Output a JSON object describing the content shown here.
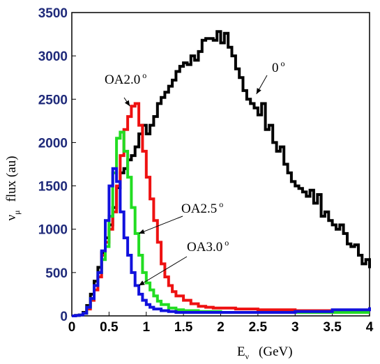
{
  "chart_data": {
    "type": "line",
    "xlabel": "Eν (GeV)",
    "ylabel": "νμ flux (au)",
    "xlim": [
      0,
      4
    ],
    "ylim": [
      0,
      3500
    ],
    "xticks": [
      "0",
      "0.5",
      "1",
      "1.5",
      "2",
      "2.5",
      "3",
      "3.5",
      "4"
    ],
    "yticks": [
      "0",
      "500",
      "1000",
      "1500",
      "2000",
      "2500",
      "3000",
      "3500"
    ],
    "grid": false,
    "step": true,
    "series": [
      {
        "name": "0°",
        "color": "#000000",
        "x": [
          0.0,
          0.05,
          0.1,
          0.15,
          0.2,
          0.25,
          0.3,
          0.35,
          0.4,
          0.45,
          0.5,
          0.55,
          0.6,
          0.65,
          0.7,
          0.75,
          0.8,
          0.85,
          0.9,
          0.95,
          1.0,
          1.05,
          1.1,
          1.15,
          1.2,
          1.25,
          1.3,
          1.35,
          1.4,
          1.45,
          1.5,
          1.55,
          1.6,
          1.65,
          1.7,
          1.75,
          1.8,
          1.85,
          1.9,
          1.95,
          2.0,
          2.05,
          2.1,
          2.15,
          2.2,
          2.25,
          2.3,
          2.35,
          2.4,
          2.45,
          2.5,
          2.55,
          2.6,
          2.65,
          2.7,
          2.75,
          2.8,
          2.85,
          2.9,
          2.95,
          3.0,
          3.05,
          3.1,
          3.15,
          3.2,
          3.25,
          3.3,
          3.35,
          3.4,
          3.45,
          3.5,
          3.55,
          3.6,
          3.65,
          3.7,
          3.75,
          3.8,
          3.85,
          3.9,
          3.95,
          4.0
        ],
        "y": [
          0,
          5,
          10,
          40,
          120,
          250,
          400,
          560,
          730,
          900,
          1050,
          1250,
          1480,
          1650,
          1700,
          1800,
          1850,
          1950,
          2100,
          2200,
          2100,
          2200,
          2300,
          2450,
          2520,
          2580,
          2650,
          2720,
          2820,
          2880,
          2920,
          2900,
          3000,
          2950,
          3050,
          3180,
          3200,
          3200,
          3180,
          3280,
          3150,
          3260,
          3100,
          3000,
          2850,
          2750,
          2600,
          2500,
          2450,
          2400,
          2320,
          2450,
          2150,
          2200,
          2000,
          1900,
          1950,
          1750,
          1650,
          1550,
          1500,
          1470,
          1430,
          1380,
          1450,
          1300,
          1400,
          1150,
          1200,
          1100,
          1050,
          1000,
          1050,
          950,
          830,
          800,
          820,
          700,
          600,
          650,
          550
        ]
      },
      {
        "name": "OA2.0°",
        "color": "#ee1111",
        "x": [
          0.0,
          0.05,
          0.1,
          0.15,
          0.2,
          0.25,
          0.3,
          0.35,
          0.4,
          0.45,
          0.5,
          0.55,
          0.6,
          0.65,
          0.7,
          0.75,
          0.8,
          0.85,
          0.9,
          0.95,
          1.0,
          1.05,
          1.1,
          1.15,
          1.2,
          1.25,
          1.3,
          1.35,
          1.4,
          1.5,
          1.6,
          1.7,
          1.8,
          1.9,
          2.0,
          2.2,
          2.5,
          3.0,
          3.5,
          4.0
        ],
        "y": [
          0,
          5,
          10,
          30,
          80,
          180,
          300,
          450,
          700,
          850,
          1000,
          1200,
          1500,
          1850,
          2150,
          2300,
          2420,
          2450,
          2200,
          1900,
          1600,
          1350,
          1100,
          850,
          600,
          450,
          350,
          280,
          230,
          180,
          140,
          110,
          100,
          90,
          90,
          80,
          70,
          60,
          60,
          60
        ]
      },
      {
        "name": "OA2.5°",
        "color": "#22dd22",
        "x": [
          0.0,
          0.05,
          0.1,
          0.15,
          0.2,
          0.25,
          0.3,
          0.35,
          0.4,
          0.45,
          0.5,
          0.55,
          0.6,
          0.65,
          0.7,
          0.75,
          0.8,
          0.85,
          0.9,
          0.95,
          1.0,
          1.05,
          1.1,
          1.15,
          1.2,
          1.3,
          1.4,
          1.5,
          1.7,
          2.0,
          2.5,
          3.0,
          3.5,
          4.0
        ],
        "y": [
          0,
          5,
          10,
          30,
          100,
          200,
          350,
          500,
          650,
          800,
          1150,
          1650,
          2050,
          2120,
          1900,
          1600,
          1250,
          950,
          700,
          500,
          380,
          300,
          230,
          170,
          130,
          90,
          70,
          60,
          50,
          40,
          40,
          40,
          40,
          40
        ]
      },
      {
        "name": "OA3.0°",
        "color": "#1111dd",
        "x": [
          0.0,
          0.05,
          0.1,
          0.15,
          0.2,
          0.25,
          0.3,
          0.35,
          0.4,
          0.45,
          0.5,
          0.55,
          0.6,
          0.65,
          0.7,
          0.75,
          0.8,
          0.85,
          0.9,
          0.95,
          1.0,
          1.05,
          1.1,
          1.2,
          1.3,
          1.4,
          1.5,
          1.7,
          2.0,
          2.5,
          3.0,
          3.5,
          4.0
        ],
        "y": [
          0,
          5,
          10,
          30,
          100,
          200,
          350,
          500,
          750,
          1100,
          1500,
          1700,
          1550,
          1200,
          900,
          700,
          500,
          350,
          250,
          180,
          130,
          100,
          80,
          60,
          50,
          40,
          40,
          40,
          40,
          40,
          50,
          70,
          100
        ]
      }
    ],
    "annotations": [
      {
        "text": "OA2.0",
        "sup": "o",
        "target_x": 0.78,
        "target_y": 2420
      },
      {
        "text": "0",
        "sup": "o",
        "target_x": 2.48,
        "target_y": 2560
      },
      {
        "text": "OA2.5",
        "sup": "o",
        "target_x": 0.9,
        "target_y": 950
      },
      {
        "text": "OA3.0",
        "sup": "o",
        "target_x": 0.9,
        "target_y": 350
      }
    ],
    "xlabel_main": "E",
    "xlabel_sub": "ν",
    "xlabel_unit": "(GeV)",
    "ylabel_nu": "ν",
    "ylabel_mu": "μ",
    "ylabel_rest": "flux  (au)"
  }
}
